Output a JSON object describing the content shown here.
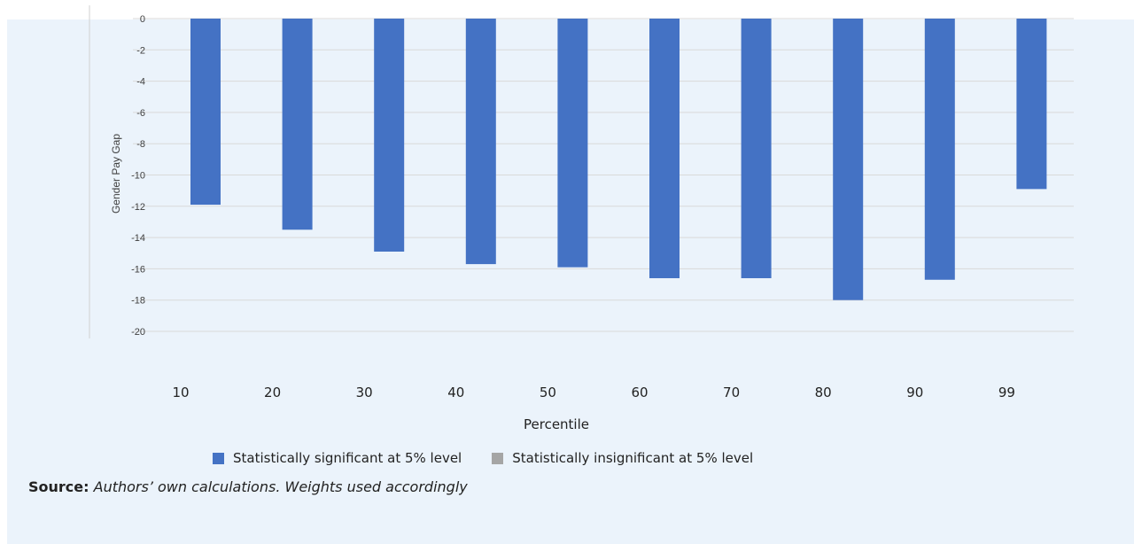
{
  "chart_data": {
    "type": "bar",
    "categories": [
      "10",
      "20",
      "30",
      "40",
      "50",
      "60",
      "70",
      "80",
      "90",
      "99"
    ],
    "series": [
      {
        "name": "Statistically significant at 5% level",
        "color": "#4472c4",
        "values": [
          -11.9,
          -13.5,
          -14.9,
          -15.7,
          -15.9,
          -16.6,
          -16.6,
          -18.0,
          -16.7,
          -10.9
        ]
      }
    ],
    "ylabel": "Gender Pay Gap",
    "xlabel": "Percentile",
    "ylim": [
      -20,
      0
    ],
    "yticks": [
      "0",
      "-2",
      "-4",
      "-6",
      "-8",
      "-10",
      "-12",
      "-14",
      "-16",
      "-18",
      "-20"
    ],
    "grid": true,
    "legend": [
      {
        "label": "Statistically significant at 5% level",
        "color": "#4472c4"
      },
      {
        "label": "Statistically insignificant at 5% level",
        "color": "#a5a5a5"
      }
    ],
    "legend_position": "bottom"
  },
  "source": {
    "label": "Source:",
    "text": "Authors’ own calculations. Weights used accordingly"
  }
}
